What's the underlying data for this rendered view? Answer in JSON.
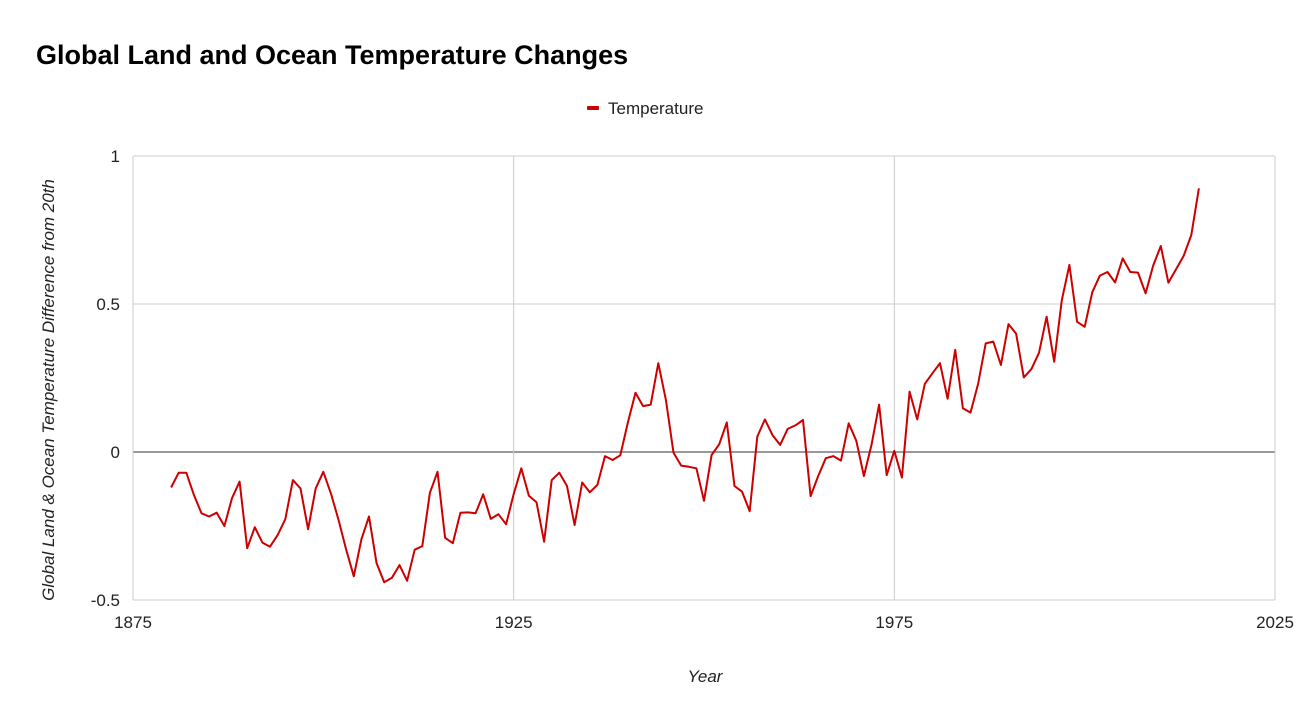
{
  "chart_data": {
    "type": "line",
    "title": "Global Land and Ocean Temperature Changes",
    "xlabel": "Year",
    "ylabel": "Global Land & Ocean Temperature Difference from 20th",
    "xlim": [
      1875,
      2025
    ],
    "ylim": [
      -0.5,
      1
    ],
    "xticks": [
      "1875",
      "1925",
      "1975",
      "2025"
    ],
    "yticks": [
      "1",
      "0.5",
      "0",
      "-0.5"
    ],
    "grid": true,
    "legend_position": "top-center",
    "series": [
      {
        "name": "Temperature",
        "color": "#cc0000",
        "x_start": 1880,
        "values": [
          -0.12,
          -0.07,
          -0.07,
          -0.145,
          -0.207,
          -0.218,
          -0.205,
          -0.25,
          -0.156,
          -0.1,
          -0.325,
          -0.254,
          -0.306,
          -0.32,
          -0.28,
          -0.227,
          -0.095,
          -0.123,
          -0.261,
          -0.123,
          -0.067,
          -0.14,
          -0.23,
          -0.33,
          -0.42,
          -0.295,
          -0.218,
          -0.376,
          -0.44,
          -0.425,
          -0.382,
          -0.435,
          -0.33,
          -0.318,
          -0.138,
          -0.067,
          -0.29,
          -0.308,
          -0.205,
          -0.204,
          -0.207,
          -0.143,
          -0.226,
          -0.21,
          -0.244,
          -0.142,
          -0.055,
          -0.148,
          -0.17,
          -0.303,
          -0.095,
          -0.07,
          -0.115,
          -0.247,
          -0.103,
          -0.136,
          -0.111,
          -0.014,
          -0.027,
          -0.011,
          0.1,
          0.2,
          0.155,
          0.16,
          0.3,
          0.176,
          -0.002,
          -0.046,
          -0.05,
          -0.055,
          -0.165,
          -0.01,
          0.026,
          0.1,
          -0.115,
          -0.134,
          -0.2,
          0.052,
          0.11,
          0.057,
          0.024,
          0.078,
          0.09,
          0.108,
          -0.149,
          -0.081,
          -0.021,
          -0.014,
          -0.029,
          0.097,
          0.038,
          -0.081,
          0.024,
          0.16,
          -0.078,
          0.004,
          -0.086,
          0.204,
          0.11,
          0.23,
          0.266,
          0.3,
          0.18,
          0.345,
          0.148,
          0.133,
          0.23,
          0.367,
          0.373,
          0.294,
          0.432,
          0.4,
          0.252,
          0.28,
          0.335,
          0.457,
          0.305,
          0.513,
          0.632,
          0.44,
          0.423,
          0.54,
          0.596,
          0.608,
          0.573,
          0.654,
          0.608,
          0.606,
          0.536,
          0.63,
          0.696,
          0.572,
          0.617,
          0.662,
          0.733,
          0.891
        ]
      }
    ]
  }
}
